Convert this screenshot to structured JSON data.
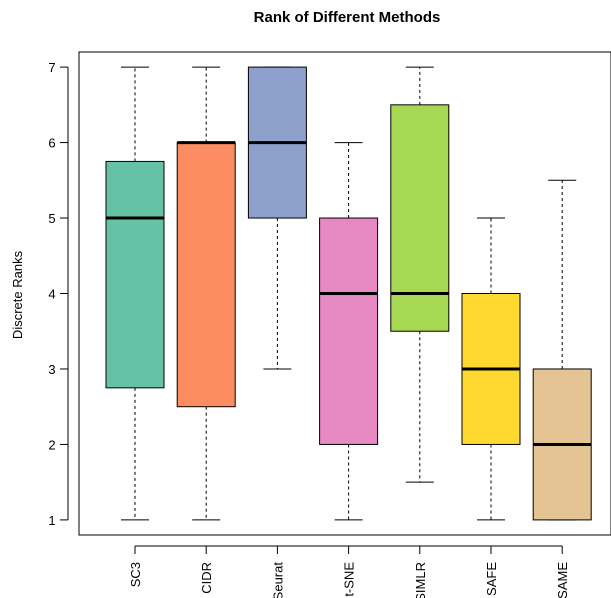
{
  "chart_data": {
    "type": "boxplot",
    "title": "Rank of Different Methods",
    "xlabel": "",
    "ylabel": "Discrete Ranks",
    "ylim": [
      0.8,
      7.2
    ],
    "yticks": [
      1,
      2,
      3,
      4,
      5,
      6,
      7
    ],
    "grid": false,
    "legend": "none",
    "categories": [
      "SC3",
      "CIDR",
      "Seurat",
      "t-SNE",
      "SIMLR",
      "SAFE",
      "SAME"
    ],
    "boxes": [
      {
        "name": "SC3",
        "min": 1,
        "q1": 2.75,
        "median": 5,
        "q3": 5.75,
        "max": 7,
        "color": "#66c2a5"
      },
      {
        "name": "CIDR",
        "min": 1,
        "q1": 2.5,
        "median": 6,
        "q3": 6,
        "max": 7,
        "color": "#fc8d62"
      },
      {
        "name": "Seurat",
        "min": 3,
        "q1": 5,
        "median": 6,
        "q3": 7,
        "max": 7,
        "color": "#8da0cb"
      },
      {
        "name": "t-SNE",
        "min": 1,
        "q1": 2,
        "median": 4,
        "q3": 5,
        "max": 6,
        "color": "#e78ac3"
      },
      {
        "name": "SIMLR",
        "min": 1.5,
        "q1": 3.5,
        "median": 4,
        "q3": 6.5,
        "max": 7,
        "color": "#a6d854"
      },
      {
        "name": "SAFE",
        "min": 1,
        "q1": 2,
        "median": 3,
        "q3": 4,
        "max": 5,
        "color": "#ffd92f"
      },
      {
        "name": "SAME",
        "min": 1,
        "q1": 1,
        "median": 2,
        "q3": 3,
        "max": 5.5,
        "color": "#e5c494"
      }
    ]
  }
}
